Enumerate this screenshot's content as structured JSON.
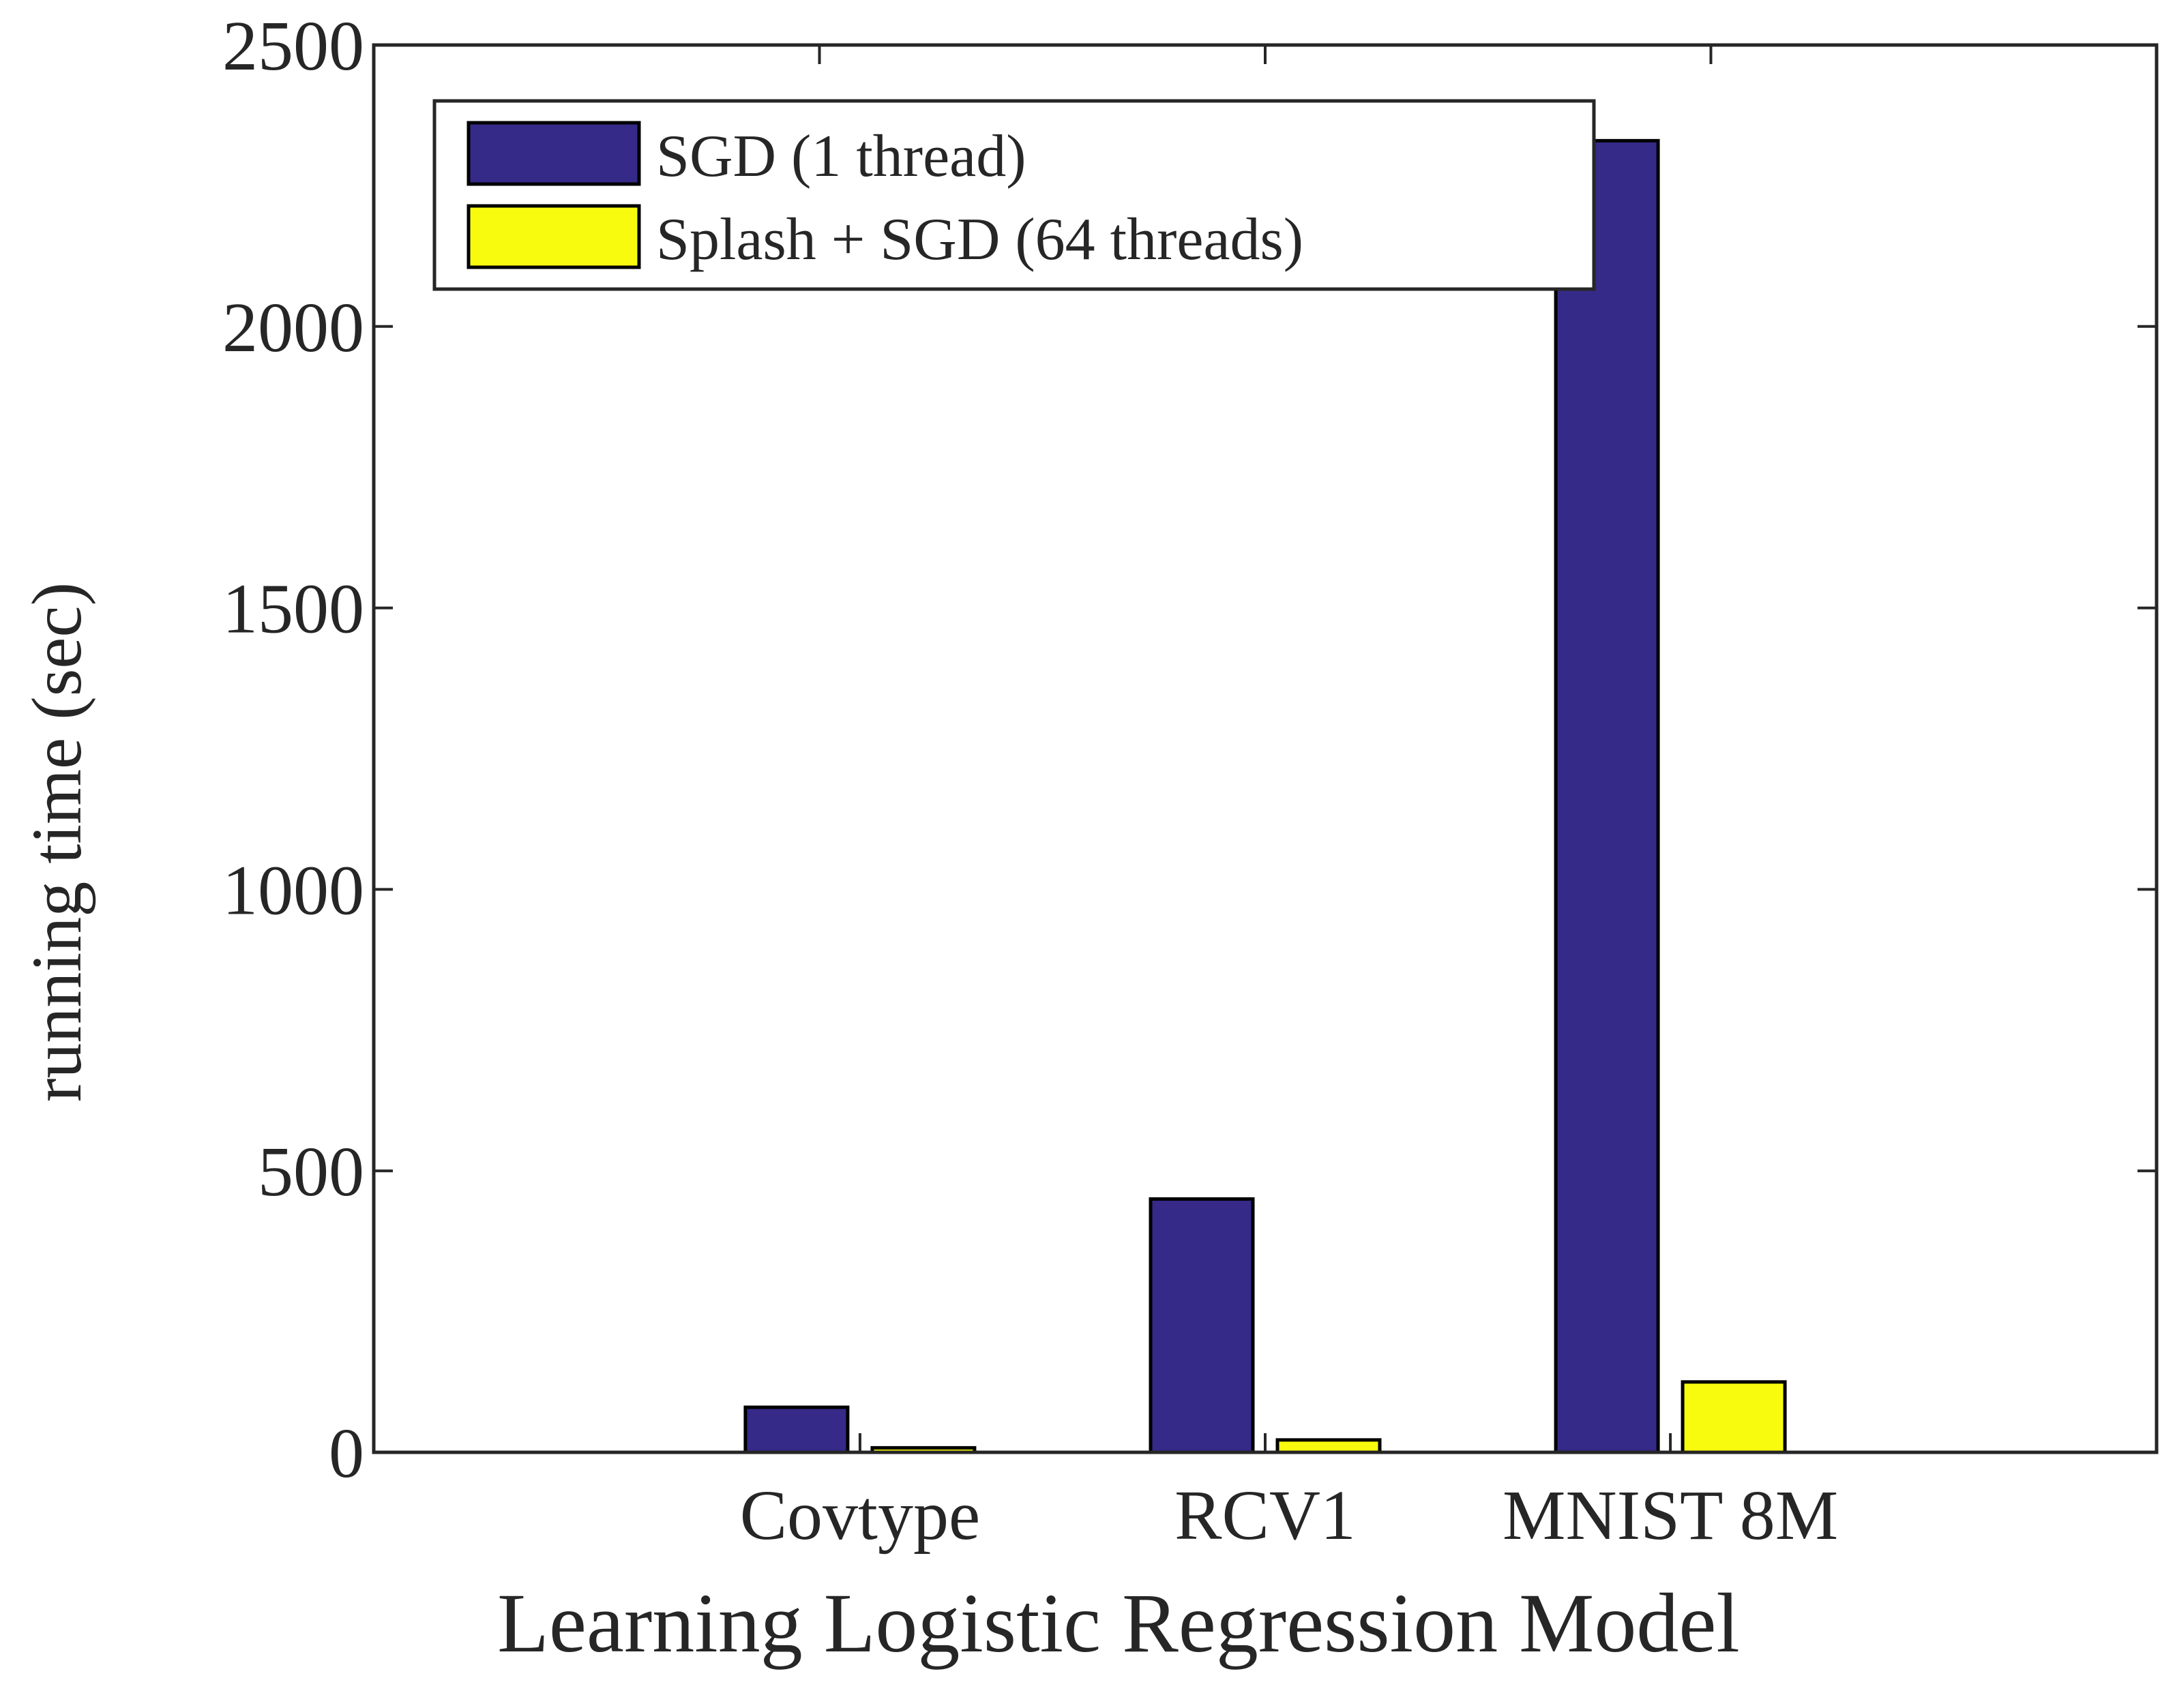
{
  "chart_data": {
    "type": "bar",
    "title": "",
    "xlabel": "Learning Logistic Regression Model",
    "ylabel": "running time (sec)",
    "categories": [
      "Covtype",
      "RCV1",
      "MNIST 8M"
    ],
    "series": [
      {
        "name": "SGD (1 thread)",
        "color": "#352a87",
        "values": [
          80,
          450,
          2330
        ]
      },
      {
        "name": "Splash + SGD (64 threads)",
        "color": "#f9fb0e",
        "values": [
          8,
          22,
          125
        ]
      }
    ],
    "ylim": [
      0,
      2500
    ],
    "yticks": [
      0,
      500,
      1000,
      1500,
      2000,
      2500
    ],
    "grid": false,
    "legend_position": "top-left"
  }
}
